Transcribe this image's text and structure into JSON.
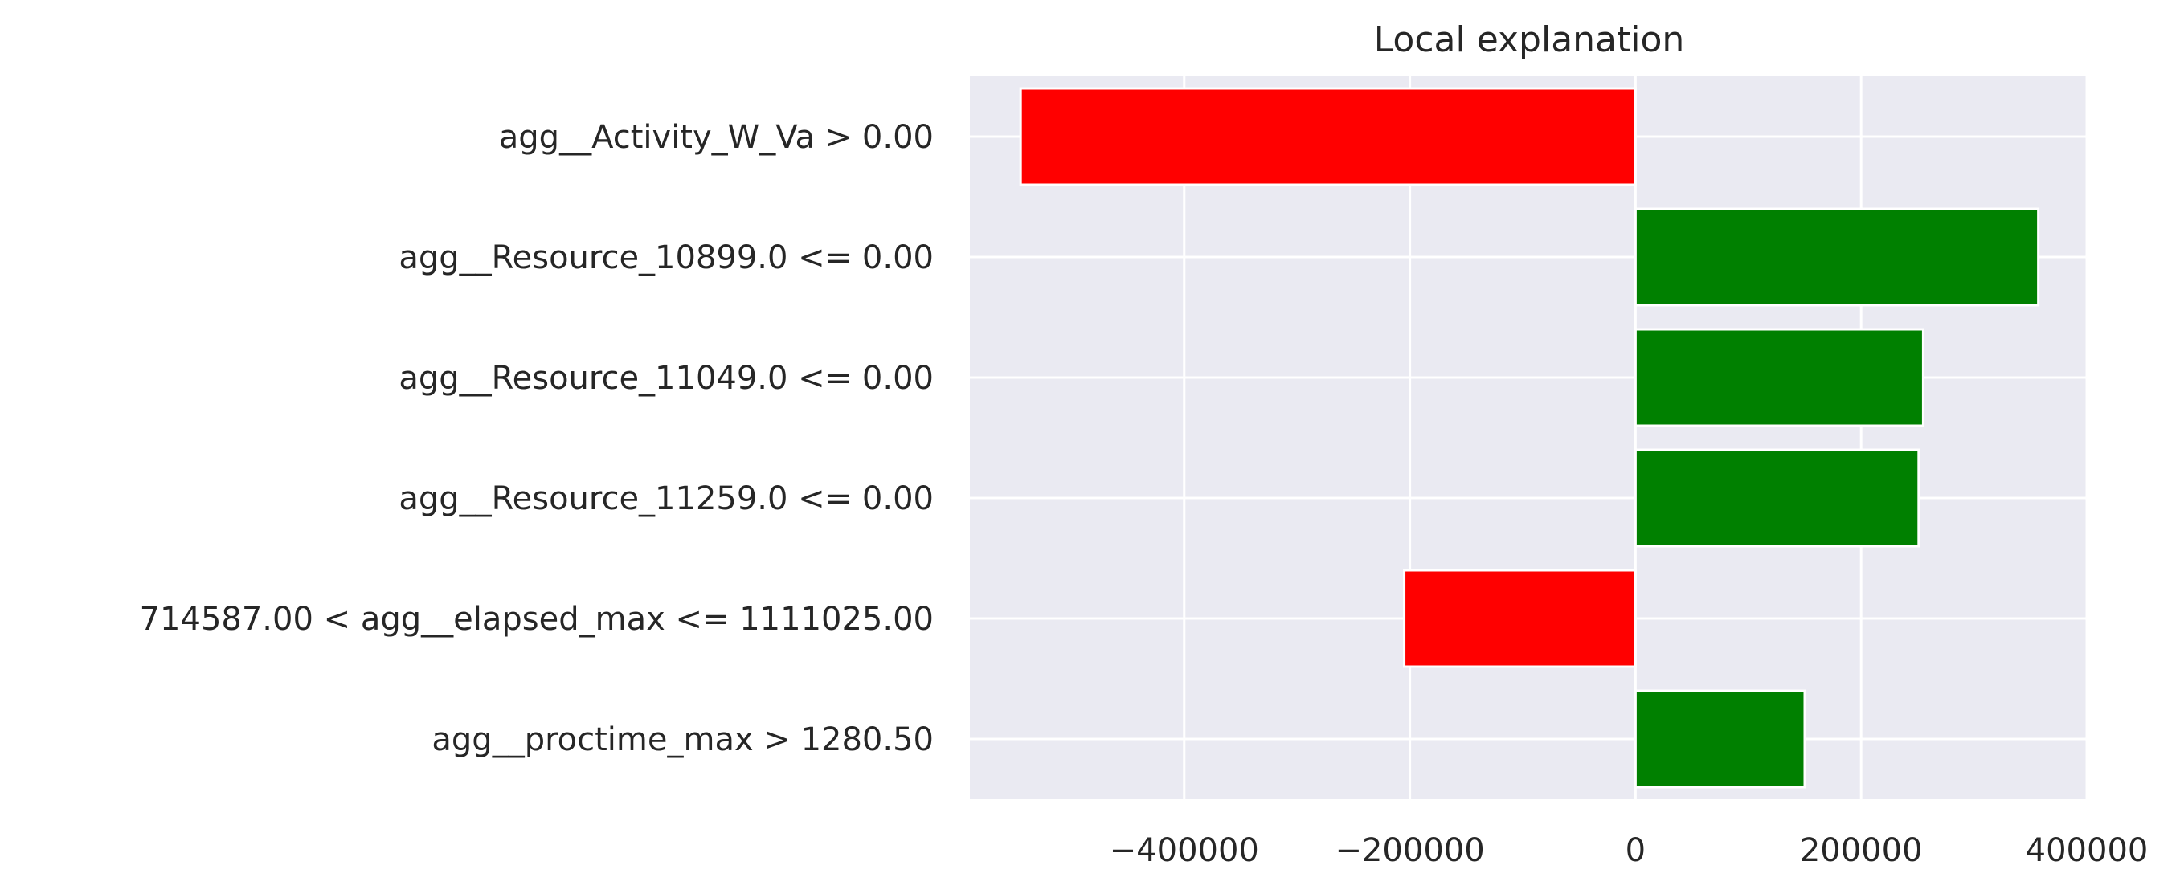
{
  "chart_data": {
    "type": "bar",
    "orientation": "horizontal",
    "title": "Local explanation",
    "xlabel": "",
    "ylabel": "",
    "categories": [
      "agg__Activity_W_Va > 0.00",
      "agg__Resource_10899.0 <= 0.00",
      "agg__Resource_11049.0 <= 0.00",
      "agg__Resource_11259.0 <= 0.00",
      "714587.00 < agg__elapsed_max <= 1111025.00",
      "agg__proctime_max > 1280.50"
    ],
    "values": [
      -545000,
      357000,
      255000,
      251000,
      -205000,
      150000
    ],
    "xlim": [
      -590000,
      400000
    ],
    "xticks": [
      -400000,
      -200000,
      0,
      200000,
      400000
    ],
    "xtick_labels": [
      "−400000",
      "−200000",
      "0",
      "200000",
      "400000"
    ],
    "grid": true,
    "colors": {
      "positive": "#008000",
      "negative": "#ff0000",
      "background": "#eaeaf2",
      "grid": "#ffffff"
    }
  }
}
